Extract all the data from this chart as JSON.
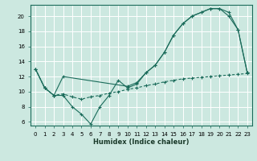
{
  "xlabel": "Humidex (Indice chaleur)",
  "bg_color": "#cce8e0",
  "grid_color": "#ffffff",
  "line_color": "#1a6b5a",
  "xlim": [
    -0.5,
    23.5
  ],
  "ylim": [
    5.5,
    21.5
  ],
  "xticks": [
    0,
    1,
    2,
    3,
    4,
    5,
    6,
    7,
    8,
    9,
    10,
    11,
    12,
    13,
    14,
    15,
    16,
    17,
    18,
    19,
    20,
    21,
    22,
    23
  ],
  "yticks": [
    6,
    8,
    10,
    12,
    14,
    16,
    18,
    20
  ],
  "line1_x": [
    0,
    1,
    2,
    3,
    4,
    5,
    6,
    7,
    8,
    9,
    10,
    11,
    12,
    13,
    14,
    15,
    16,
    17,
    18,
    19,
    20,
    21,
    22,
    23
  ],
  "line1_y": [
    13,
    10.5,
    9.5,
    9.5,
    8,
    7,
    5.7,
    8,
    9.5,
    11.5,
    10.5,
    11,
    12.5,
    13.5,
    15.2,
    17.5,
    19,
    20,
    20.5,
    21,
    21,
    20,
    18.2,
    12.5
  ],
  "line2_x": [
    0,
    1,
    2,
    3,
    10,
    11,
    12,
    13,
    14,
    15,
    16,
    17,
    18,
    19,
    20,
    21,
    22,
    23
  ],
  "line2_y": [
    13,
    10.5,
    9.5,
    12,
    10.7,
    11.2,
    12.5,
    13.5,
    15.2,
    17.5,
    19,
    20,
    20.5,
    21,
    21,
    20.5,
    18.2,
    12.5
  ],
  "line3_x": [
    0,
    1,
    2,
    3,
    4,
    5,
    6,
    7,
    8,
    9,
    10,
    11,
    12,
    13,
    14,
    15,
    16,
    17,
    18,
    19,
    20,
    21,
    22,
    23
  ],
  "line3_y": [
    13,
    10.5,
    9.5,
    9.7,
    9.3,
    9.0,
    9.3,
    9.5,
    9.8,
    10.0,
    10.3,
    10.5,
    10.8,
    11.0,
    11.3,
    11.5,
    11.7,
    11.8,
    11.9,
    12.0,
    12.1,
    12.2,
    12.3,
    12.4
  ]
}
